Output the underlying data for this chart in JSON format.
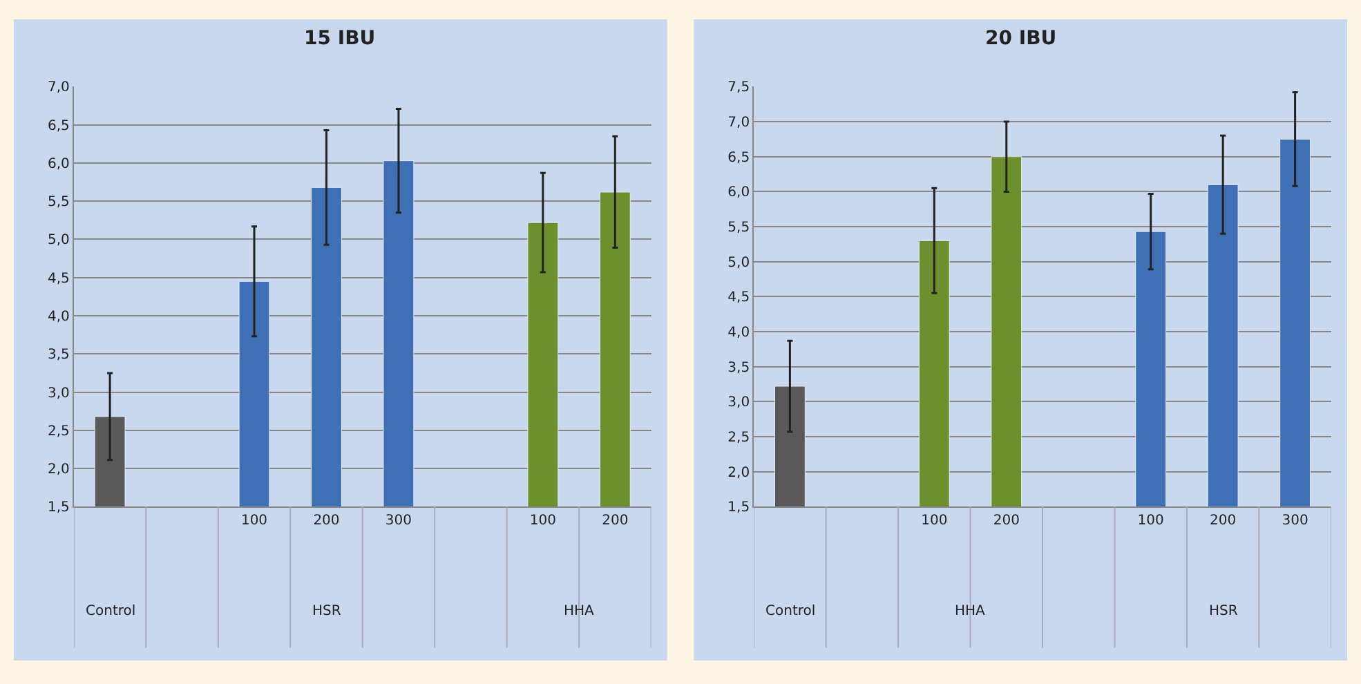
{
  "chart_data": [
    {
      "type": "bar",
      "title": "15 IBU",
      "categories": [
        null,
        null,
        "100",
        "200",
        "300",
        null,
        "100",
        "200"
      ],
      "values": [
        2.68,
        null,
        4.45,
        5.68,
        6.03,
        null,
        5.22,
        5.62
      ],
      "errors": [
        0.57,
        null,
        0.72,
        0.75,
        0.68,
        null,
        0.65,
        0.73
      ],
      "colors": [
        "#595959",
        "#595959",
        "#3f6fb5",
        "#3f6fb5",
        "#3f6fb5",
        "#6e8f2e",
        "#6e8f2e",
        "#6e8f2e"
      ],
      "annotations": [
        "Control",
        "HSR",
        "HHA"
      ],
      "ylim": [
        1.5,
        7
      ],
      "yticks": [
        {
          "value": 1.5,
          "label": "1,5"
        },
        {
          "value": 2.0,
          "label": "2,0"
        },
        {
          "value": 2.5,
          "label": "2,5"
        },
        {
          "value": 3.0,
          "label": "3,0"
        },
        {
          "value": 3.5,
          "label": "3,5"
        },
        {
          "value": 4.0,
          "label": "4,0"
        },
        {
          "value": 4.5,
          "label": "4,5"
        },
        {
          "value": 5.0,
          "label": "5,0"
        },
        {
          "value": 5.5,
          "label": "5,5"
        },
        {
          "value": 6.0,
          "label": "6,0"
        },
        {
          "value": 6.5,
          "label": "6,5"
        },
        {
          "value": 7.0,
          "label": "7,0"
        }
      ],
      "grid": "y"
    },
    {
      "type": "bar",
      "title": "20 IBU",
      "categories": [
        null,
        null,
        "100",
        "200",
        null,
        "100",
        "200",
        "300"
      ],
      "values": [
        3.22,
        null,
        5.3,
        6.5,
        null,
        5.43,
        6.1,
        6.75
      ],
      "errors": [
        0.65,
        null,
        0.75,
        0.5,
        null,
        0.54,
        0.7,
        0.67
      ],
      "colors": [
        "#595959",
        "#595959",
        "#6e8f2e",
        "#6e8f2e",
        "#3f6fb5",
        "#3f6fb5",
        "#3f6fb5",
        "#3f6fb5"
      ],
      "annotations": [
        "Control",
        "HHA",
        "HSR"
      ],
      "ylim": [
        1.5,
        7.5
      ],
      "yticks": [
        {
          "value": 1.5,
          "label": "1,5"
        },
        {
          "value": 2.0,
          "label": "2,0"
        },
        {
          "value": 2.5,
          "label": "2,5"
        },
        {
          "value": 3.0,
          "label": "3,0"
        },
        {
          "value": 3.5,
          "label": "3,5"
        },
        {
          "value": 4.0,
          "label": "4,0"
        },
        {
          "value": 4.5,
          "label": "4,5"
        },
        {
          "value": 5.0,
          "label": "5,0"
        },
        {
          "value": 5.5,
          "label": "5,5"
        },
        {
          "value": 6.0,
          "label": "6,0"
        },
        {
          "value": 6.5,
          "label": "6,5"
        },
        {
          "value": 7.0,
          "label": "7,0"
        },
        {
          "value": 7.5,
          "label": "7,5"
        }
      ],
      "grid": "y"
    }
  ]
}
